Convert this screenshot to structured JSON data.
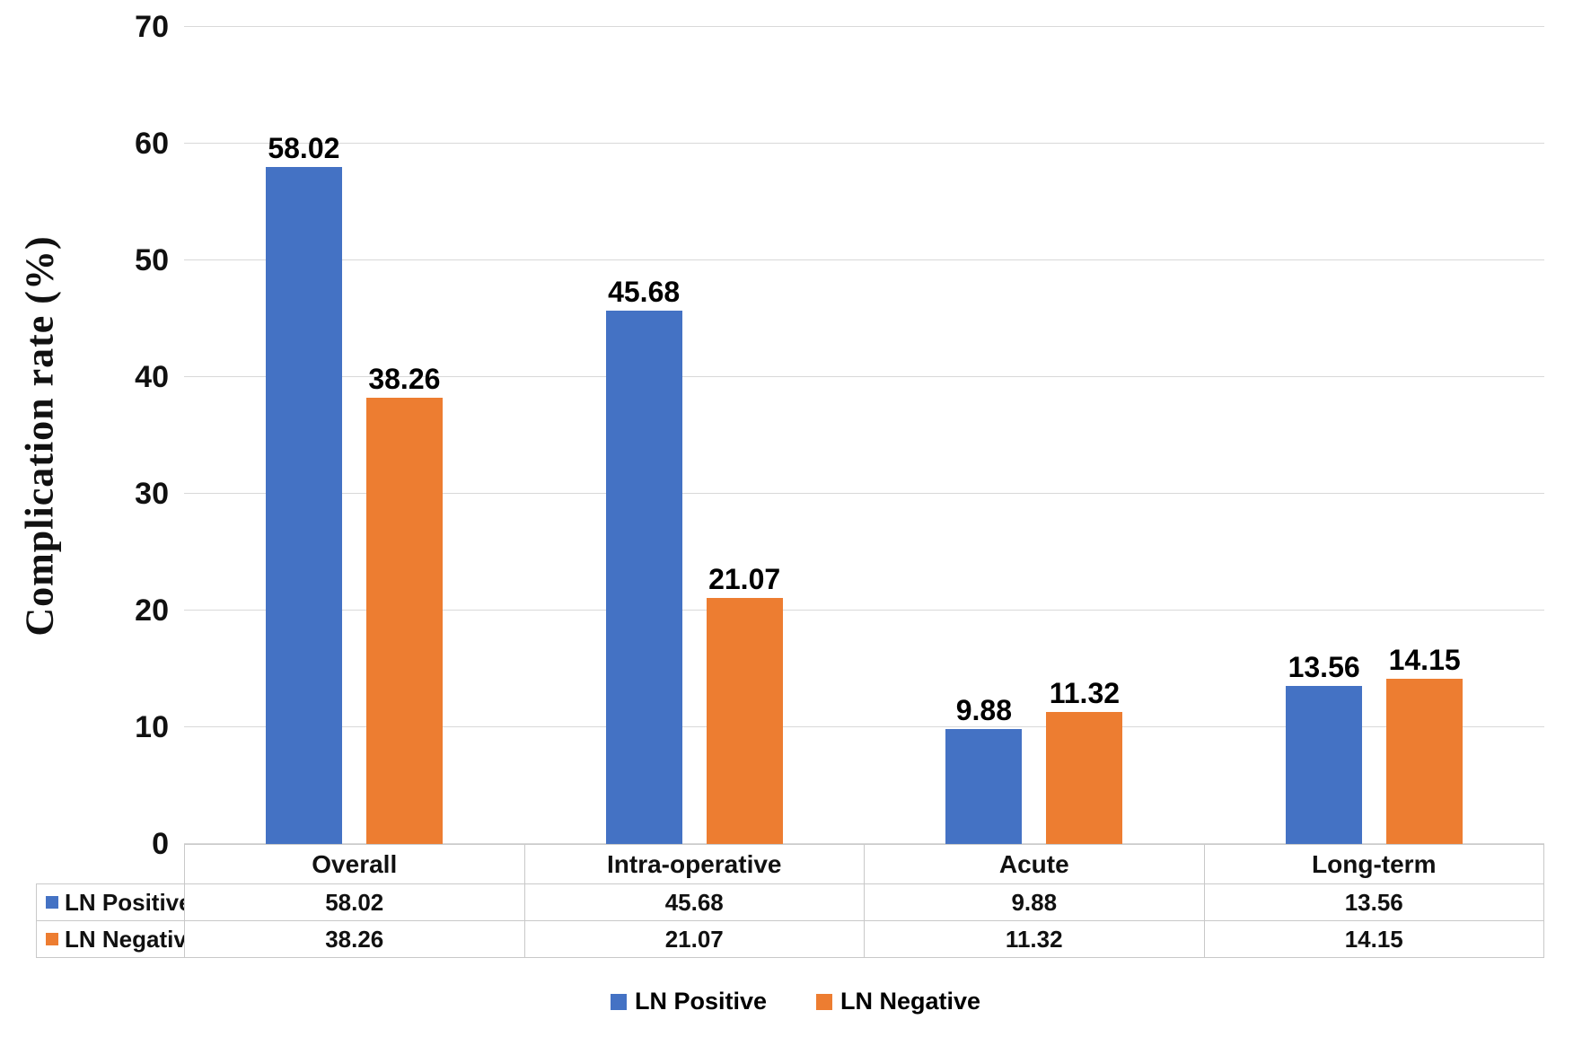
{
  "chart_data": {
    "type": "bar",
    "ylabel": "Complication rate (%)",
    "xlabel": "",
    "ylim": [
      0,
      70
    ],
    "yticks": [
      0,
      10,
      20,
      30,
      40,
      50,
      60,
      70
    ],
    "grid": true,
    "legend_position": "bottom",
    "data_table_shown": true,
    "categories": [
      "Overall",
      "Intra-operative",
      "Acute",
      "Long-term"
    ],
    "series": [
      {
        "name": "LN Positive",
        "color": "#4472C4",
        "values": [
          58.02,
          45.68,
          9.88,
          13.56
        ]
      },
      {
        "name": "LN Negative",
        "color": "#ED7D31",
        "values": [
          38.26,
          21.07,
          11.32,
          14.15
        ]
      }
    ]
  }
}
